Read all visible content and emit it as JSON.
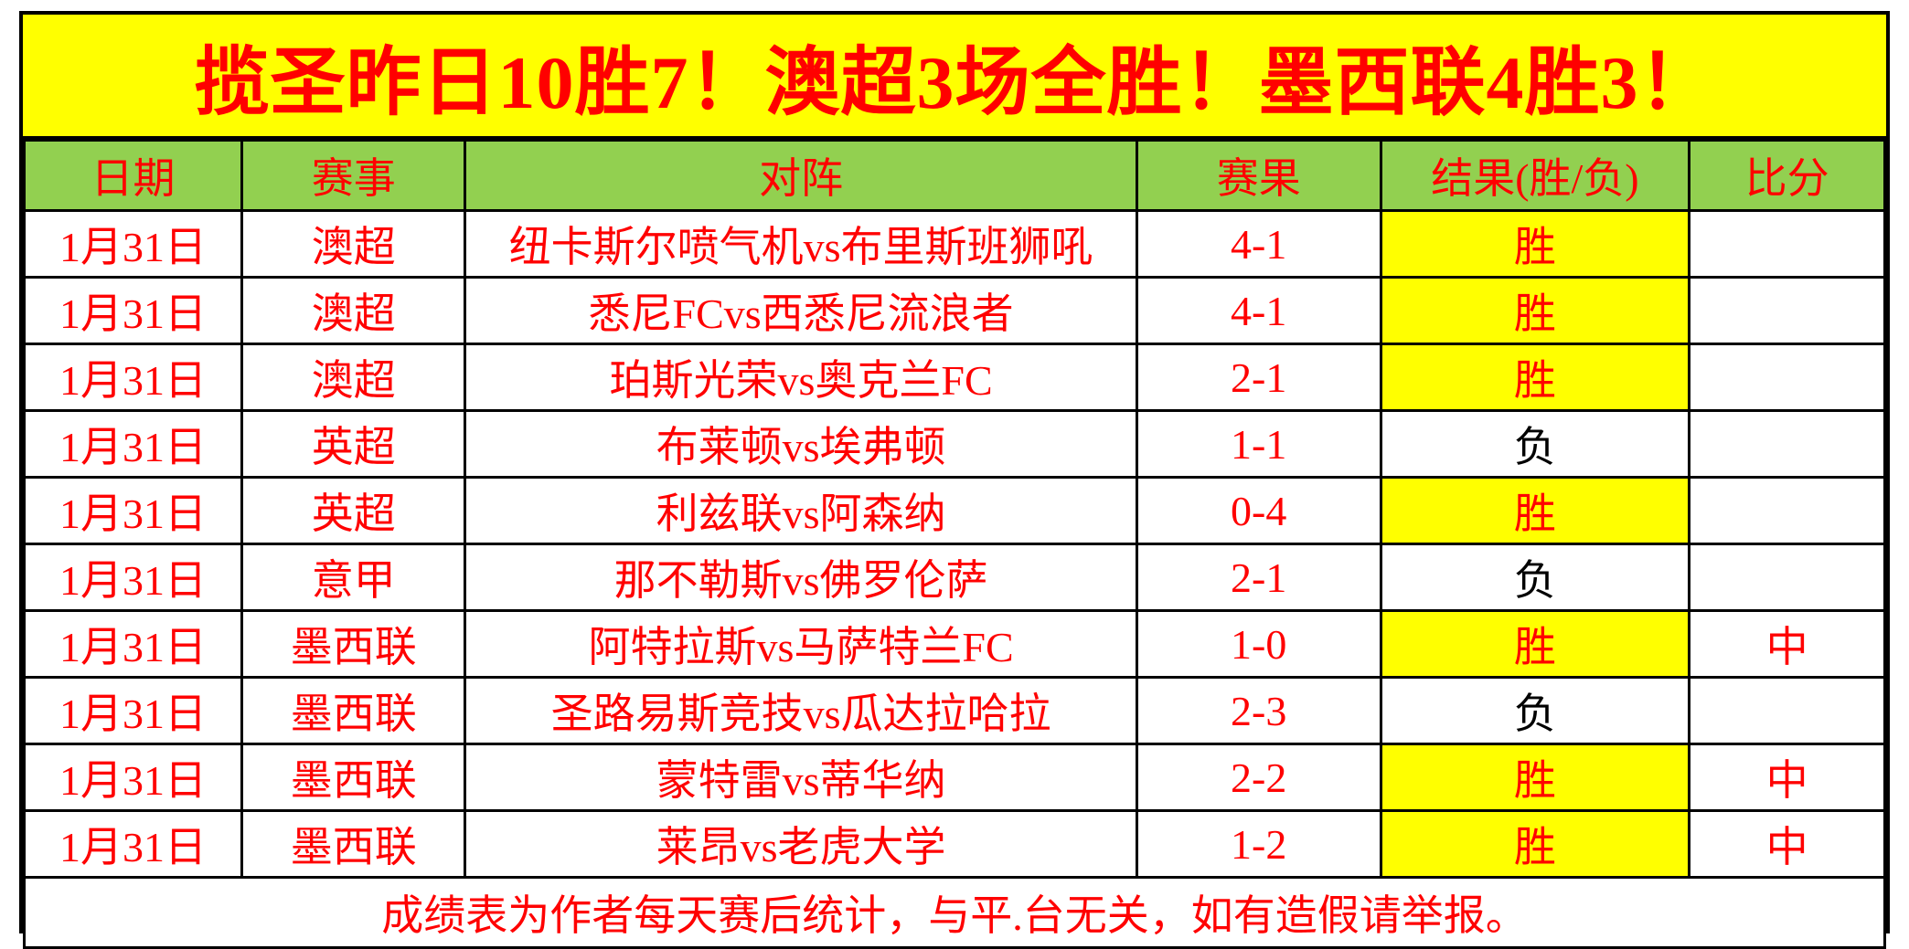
{
  "banner": {
    "title": "揽圣昨日10胜7！澳超3场全胜！墨西联4胜3！"
  },
  "table": {
    "columns": [
      "日期",
      "赛事",
      "对阵",
      "赛果",
      "结果(胜/负)",
      "比分"
    ],
    "rows": [
      {
        "date": "1月31日",
        "league": "澳超",
        "match": "纽卡斯尔喷气机vs布里斯班狮吼",
        "score": "4-1",
        "result": "胜",
        "win": true,
        "final": ""
      },
      {
        "date": "1月31日",
        "league": "澳超",
        "match": "悉尼FCvs西悉尼流浪者",
        "score": "4-1",
        "result": "胜",
        "win": true,
        "final": ""
      },
      {
        "date": "1月31日",
        "league": "澳超",
        "match": "珀斯光荣vs奥克兰FC",
        "score": "2-1",
        "result": "胜",
        "win": true,
        "final": ""
      },
      {
        "date": "1月31日",
        "league": "英超",
        "match": "布莱顿vs埃弗顿",
        "score": "1-1",
        "result": "负",
        "win": false,
        "final": ""
      },
      {
        "date": "1月31日",
        "league": "英超",
        "match": "利兹联vs阿森纳",
        "score": "0-4",
        "result": "胜",
        "win": true,
        "final": ""
      },
      {
        "date": "1月31日",
        "league": "意甲",
        "match": "那不勒斯vs佛罗伦萨",
        "score": "2-1",
        "result": "负",
        "win": false,
        "final": ""
      },
      {
        "date": "1月31日",
        "league": "墨西联",
        "match": "阿特拉斯vs马萨特兰FC",
        "score": "1-0",
        "result": "胜",
        "win": true,
        "final": "中"
      },
      {
        "date": "1月31日",
        "league": "墨西联",
        "match": "圣路易斯竞技vs瓜达拉哈拉",
        "score": "2-3",
        "result": "负",
        "win": false,
        "final": ""
      },
      {
        "date": "1月31日",
        "league": "墨西联",
        "match": "蒙特雷vs蒂华纳",
        "score": "2-2",
        "result": "胜",
        "win": true,
        "final": "中"
      },
      {
        "date": "1月31日",
        "league": "墨西联",
        "match": "莱昂vs老虎大学",
        "score": "1-2",
        "result": "胜",
        "win": true,
        "final": "中"
      }
    ],
    "footer": "成绩表为作者每天赛后统计，与平.台无关，如有造假请举报。"
  },
  "colors": {
    "banner-bg": "#ffff00",
    "accent-red": "#ff0000",
    "header-bg": "#92d050",
    "win-bg": "#ffff00",
    "loss-text": "#000000",
    "border": "#000000"
  }
}
